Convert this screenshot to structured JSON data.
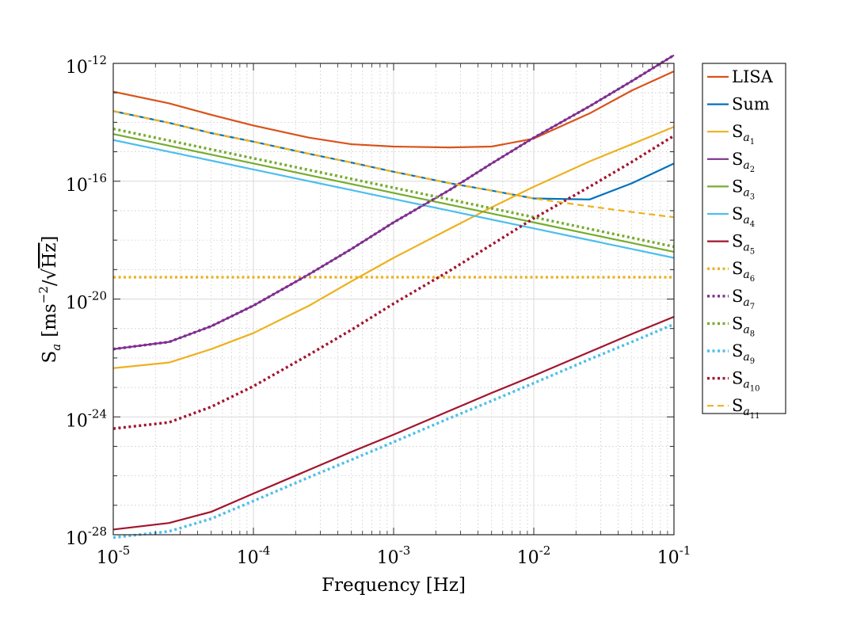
{
  "chart_data": {
    "type": "line",
    "title": "",
    "xlabel": "Frequency [Hz]",
    "ylabel": "S_a [ms^-2/√Hz]",
    "ylabel_parts": {
      "symbol": "S",
      "sub": "a",
      "unit_open": "[ms",
      "unit_exp": "−2",
      "unit_mid": "/√",
      "unit_root": "Hz",
      "unit_close": "]"
    },
    "xscale": "log",
    "yscale": "log",
    "xlim": [
      1e-05,
      0.1
    ],
    "ylim": [
      1e-28,
      1e-12
    ],
    "grid": true,
    "legend_location": "outside-right",
    "x_ticks": [
      {
        "value": 1e-05,
        "base": "10",
        "exp": "-5"
      },
      {
        "value": 0.0001,
        "base": "10",
        "exp": "-4"
      },
      {
        "value": 0.001,
        "base": "10",
        "exp": "-3"
      },
      {
        "value": 0.01,
        "base": "10",
        "exp": "-2"
      },
      {
        "value": 0.1,
        "base": "10",
        "exp": "-1"
      }
    ],
    "y_ticks": [
      {
        "value": 1e-28,
        "base": "10",
        "exp": "-28"
      },
      {
        "value": 1e-24,
        "base": "10",
        "exp": "-24"
      },
      {
        "value": 1e-20,
        "base": "10",
        "exp": "-20"
      },
      {
        "value": 1e-16,
        "base": "10",
        "exp": "-16"
      },
      {
        "value": 1e-12,
        "base": "10",
        "exp": "-12"
      }
    ],
    "x": [
      1e-05,
      2.5e-05,
      5e-05,
      0.0001,
      0.00025,
      0.0005,
      0.001,
      0.0025,
      0.005,
      0.01,
      0.025,
      0.05,
      0.1
    ],
    "series": [
      {
        "name": "LISA",
        "label": "LISA",
        "sub": "",
        "color": "#D95319",
        "style": "solid",
        "values": [
          1.1e-13,
          4.4e-14,
          1.8e-14,
          7.8e-15,
          3e-15,
          1.8e-15,
          1.5e-15,
          1.4e-15,
          1.5e-15,
          2.8e-15,
          2e-14,
          1.2e-13,
          5.4e-13
        ]
      },
      {
        "name": "Sum",
        "label": "Sum",
        "sub": "",
        "color": "#0072BD",
        "style": "solid",
        "values": [
          2.4e-14,
          9.6e-15,
          4.3e-15,
          2.2e-15,
          8.5e-16,
          4.3e-16,
          2.1e-16,
          8.6e-17,
          4.8e-17,
          2.6e-17,
          2.4e-17,
          8.5e-17,
          4e-16
        ]
      },
      {
        "name": "S_a1",
        "label": "S",
        "sub": "1",
        "color": "#EDB120",
        "style": "solid",
        "values": [
          4.5e-23,
          7e-23,
          2e-22,
          7e-22,
          6e-21,
          4e-20,
          2.5e-19,
          2.4e-18,
          1.3e-17,
          6.5e-17,
          4.7e-16,
          1.8e-15,
          7e-15
        ]
      },
      {
        "name": "S_a2",
        "label": "S",
        "sub": "2",
        "color": "#7E2F8E",
        "style": "solid",
        "values": [
          2e-22,
          3.5e-22,
          1.2e-21,
          6e-21,
          7e-20,
          5e-19,
          4e-18,
          5e-17,
          4e-16,
          3e-15,
          3.5e-14,
          2.5e-13,
          1.9e-12
        ]
      },
      {
        "name": "S_a3",
        "label": "S",
        "sub": "3",
        "color": "#77AC30",
        "style": "solid",
        "values": [
          4e-15,
          1.6e-15,
          8e-16,
          4e-16,
          1.6e-16,
          8e-17,
          4e-17,
          1.6e-17,
          8e-18,
          4e-18,
          1.6e-18,
          8e-19,
          4e-19
        ]
      },
      {
        "name": "S_a4",
        "label": "S",
        "sub": "4",
        "color": "#4DBEEE",
        "style": "solid",
        "values": [
          2.5e-15,
          1e-15,
          5e-16,
          2.5e-16,
          1e-16,
          5e-17,
          2.5e-17,
          1e-17,
          5e-18,
          2.5e-18,
          1e-18,
          5e-19,
          2.5e-19
        ]
      },
      {
        "name": "S_a5",
        "label": "S",
        "sub": "5",
        "color": "#A2142F",
        "style": "solid",
        "values": [
          1.5e-28,
          2.5e-28,
          6e-28,
          2.5e-27,
          1.6e-26,
          6.5e-26,
          2.5e-25,
          1.6e-24,
          6.5e-24,
          2.5e-23,
          1.6e-22,
          6.5e-22,
          2.5e-21
        ]
      },
      {
        "name": "S_a6",
        "label": "S",
        "sub": "6",
        "color": "#EDB120",
        "style": "dotted",
        "values": [
          5.5e-20,
          5.5e-20,
          5.5e-20,
          5.5e-20,
          5.5e-20,
          5.5e-20,
          5.5e-20,
          5.5e-20,
          5.5e-20,
          5.5e-20,
          5.5e-20,
          5.5e-20,
          5.5e-20
        ]
      },
      {
        "name": "S_a7",
        "label": "S",
        "sub": "7",
        "color": "#7E2F8E",
        "style": "dotted",
        "values": [
          2e-22,
          3.5e-22,
          1.2e-21,
          6e-21,
          7e-20,
          5e-19,
          4e-18,
          5e-17,
          4e-16,
          3e-15,
          3.5e-14,
          2.5e-13,
          1.9e-12
        ]
      },
      {
        "name": "S_a8",
        "label": "S",
        "sub": "8",
        "color": "#77AC30",
        "style": "dotted",
        "values": [
          6e-15,
          2.4e-15,
          1.2e-15,
          6e-16,
          2.4e-16,
          1.2e-16,
          6e-17,
          2.4e-17,
          1.2e-17,
          6e-18,
          2.4e-18,
          1.2e-18,
          6e-19
        ]
      },
      {
        "name": "S_a9",
        "label": "S",
        "sub": "9",
        "color": "#4DBEEE",
        "style": "dotted",
        "values": [
          8e-29,
          1.3e-28,
          3.5e-28,
          1.4e-27,
          9e-27,
          3.5e-26,
          1.4e-25,
          9e-25,
          3.5e-24,
          1.4e-23,
          9e-23,
          3.5e-22,
          1.4e-21
        ]
      },
      {
        "name": "S_a10",
        "label": "S",
        "sub": "10",
        "color": "#A2142F",
        "style": "dotted",
        "values": [
          4e-25,
          6.5e-25,
          2.2e-24,
          1.1e-23,
          1.3e-22,
          9e-22,
          7e-21,
          9e-20,
          7e-19,
          5.5e-18,
          6.5e-17,
          4.5e-16,
          3.5e-15
        ]
      },
      {
        "name": "S_a11",
        "label": "S",
        "sub": "11",
        "color": "#EDB120",
        "style": "dashed",
        "values": [
          2.4e-14,
          9.6e-15,
          4.3e-15,
          2.2e-15,
          8.5e-16,
          4.3e-16,
          2.1e-16,
          8.6e-17,
          4.8e-17,
          2.6e-17,
          1.4e-17,
          9e-18,
          6e-18
        ]
      }
    ]
  }
}
